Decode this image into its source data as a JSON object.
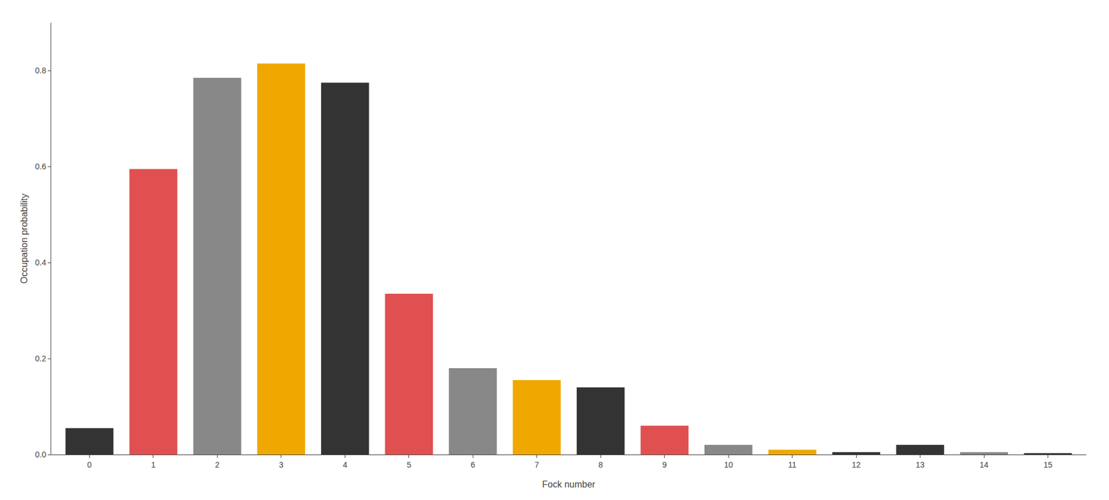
{
  "chart_data": {
    "type": "bar",
    "x": [
      0,
      1,
      2,
      3,
      4,
      5,
      6,
      7,
      8,
      9,
      10,
      11,
      12,
      13,
      14,
      15
    ],
    "values": [
      0.055,
      0.595,
      0.785,
      0.815,
      0.775,
      0.335,
      0.18,
      0.155,
      0.14,
      0.06,
      0.02,
      0.01,
      0.005,
      0.02,
      0.005,
      0.003
    ],
    "colors": [
      "#333333",
      "#e05050",
      "#888888",
      "#f0a800",
      "#333333",
      "#e05050",
      "#888888",
      "#f0a800",
      "#333333",
      "#e05050",
      "#888888",
      "#f0a800",
      "#333333",
      "#333333",
      "#888888",
      "#333333"
    ],
    "xlabel": "Fock number",
    "ylabel": "Occupation probability",
    "xlim": [
      -0.6,
      15.6
    ],
    "xticks": [
      0,
      1,
      2,
      3,
      4,
      5,
      6,
      7,
      8,
      9,
      10,
      11,
      12,
      13,
      14,
      15
    ],
    "ylim": [
      0,
      0.9
    ],
    "yticks": [
      {
        "value": 0,
        "label": "0.0"
      },
      0.2,
      0.4,
      0.6,
      0.8
    ],
    "grid": false
  }
}
